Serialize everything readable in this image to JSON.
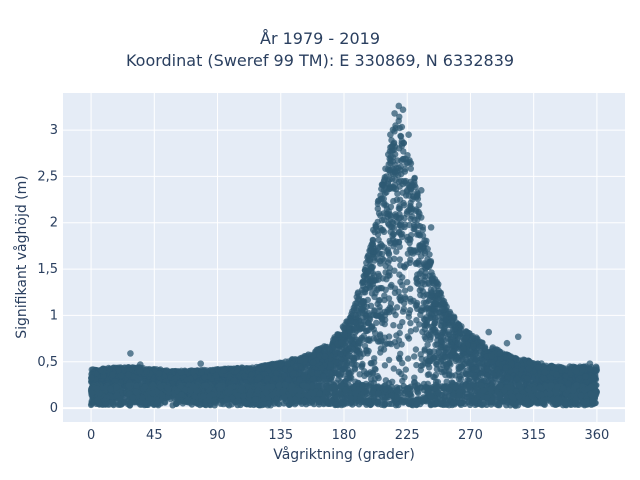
{
  "title": "År 1979 - 2019",
  "subtitle": "Koordinat (Sweref 99 TM): E 330869, N 6332839",
  "chart_data": {
    "type": "scatter",
    "xlabel": "Vågriktning (grader)",
    "ylabel": "Signifikant våghöjd (m)",
    "xlim": [
      -20,
      380
    ],
    "ylim": [
      -0.15,
      3.4
    ],
    "xticks": [
      0,
      45,
      90,
      135,
      180,
      225,
      270,
      315,
      360
    ],
    "yticks": [
      0,
      0.5,
      1,
      1.5,
      2,
      2.5,
      3
    ],
    "ytick_labels": [
      "0",
      "0,5",
      "1",
      "1,5",
      "2",
      "2,5",
      "3"
    ],
    "grid": true,
    "marker_color": "#2e5a73",
    "background_color": "#e5ecf6",
    "envelope": [
      {
        "x": 0,
        "y": 0.42
      },
      {
        "x": 30,
        "y": 0.45
      },
      {
        "x": 60,
        "y": 0.4
      },
      {
        "x": 90,
        "y": 0.42
      },
      {
        "x": 120,
        "y": 0.45
      },
      {
        "x": 150,
        "y": 0.55
      },
      {
        "x": 170,
        "y": 0.7
      },
      {
        "x": 185,
        "y": 1.0
      },
      {
        "x": 195,
        "y": 1.5
      },
      {
        "x": 205,
        "y": 2.3
      },
      {
        "x": 212,
        "y": 2.8
      },
      {
        "x": 218,
        "y": 3.25
      },
      {
        "x": 225,
        "y": 2.8
      },
      {
        "x": 232,
        "y": 2.4
      },
      {
        "x": 240,
        "y": 1.7
      },
      {
        "x": 250,
        "y": 1.2
      },
      {
        "x": 262,
        "y": 0.9
      },
      {
        "x": 280,
        "y": 0.7
      },
      {
        "x": 300,
        "y": 0.55
      },
      {
        "x": 330,
        "y": 0.45
      },
      {
        "x": 360,
        "y": 0.45
      }
    ],
    "outliers": [
      {
        "x": 28,
        "y": 0.59
      },
      {
        "x": 35,
        "y": 0.47
      },
      {
        "x": 78,
        "y": 0.48
      },
      {
        "x": 304,
        "y": 0.77
      },
      {
        "x": 296,
        "y": 0.7
      },
      {
        "x": 355,
        "y": 0.48
      },
      {
        "x": 219,
        "y": 3.26
      },
      {
        "x": 222,
        "y": 3.22
      },
      {
        "x": 216,
        "y": 3.18
      },
      {
        "x": 213,
        "y": 2.95
      },
      {
        "x": 226,
        "y": 2.95
      },
      {
        "x": 235,
        "y": 2.35
      },
      {
        "x": 242,
        "y": 1.95
      },
      {
        "x": 283,
        "y": 0.82
      }
    ]
  }
}
